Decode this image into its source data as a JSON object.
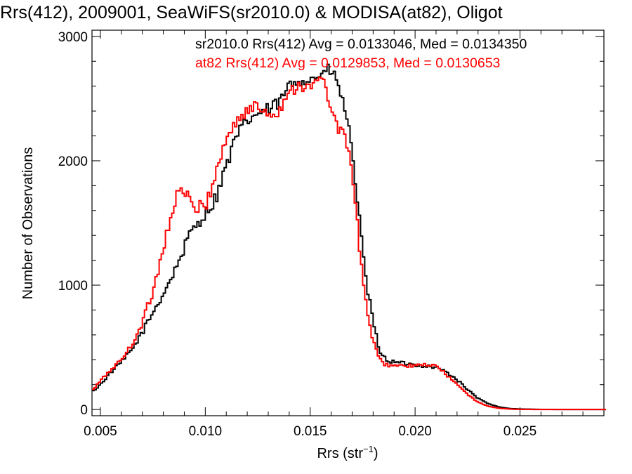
{
  "chart_data": {
    "type": "line",
    "title": "Rrs(412), 2009001, SeaWiFS(sr2010.0) & MODISA(at82), Oligot",
    "xlabel": {
      "base": "Rrs (str",
      "sup": "−1",
      "close": ")"
    },
    "ylabel": "Number of Observations",
    "xlim": [
      0.0046,
      0.029
    ],
    "ylim": [
      -50,
      3050
    ],
    "xticks": [
      0.005,
      0.01,
      0.015,
      0.02,
      0.025
    ],
    "xtick_labels": [
      "0.005",
      "0.010",
      "0.015",
      "0.020",
      "0.025"
    ],
    "yticks": [
      0,
      1000,
      2000,
      3000
    ],
    "ytick_labels": [
      "0",
      "1000",
      "2000",
      "3000"
    ],
    "grid": false,
    "legend_position": "top-right",
    "series": [
      {
        "name": "sr2010.0 Rrs(412) Avg = 0.0133046, Med = 0.0134350",
        "color": "#000000",
        "points": [
          [
            0.0046,
            140
          ],
          [
            0.005,
            200
          ],
          [
            0.0055,
            300
          ],
          [
            0.006,
            380
          ],
          [
            0.0065,
            480
          ],
          [
            0.007,
            620
          ],
          [
            0.0075,
            780
          ],
          [
            0.008,
            930
          ],
          [
            0.0085,
            1100
          ],
          [
            0.009,
            1300
          ],
          [
            0.0095,
            1480
          ],
          [
            0.01,
            1570
          ],
          [
            0.0105,
            1700
          ],
          [
            0.011,
            1960
          ],
          [
            0.0115,
            2200
          ],
          [
            0.012,
            2320
          ],
          [
            0.0125,
            2380
          ],
          [
            0.013,
            2410
          ],
          [
            0.0135,
            2460
          ],
          [
            0.014,
            2600
          ],
          [
            0.0145,
            2660
          ],
          [
            0.015,
            2650
          ],
          [
            0.0155,
            2700
          ],
          [
            0.016,
            2730
          ],
          [
            0.0163,
            2620
          ],
          [
            0.0166,
            2460
          ],
          [
            0.017,
            2100
          ],
          [
            0.0173,
            1600
          ],
          [
            0.0176,
            1100
          ],
          [
            0.018,
            700
          ],
          [
            0.0183,
            480
          ],
          [
            0.0186,
            400
          ],
          [
            0.019,
            380
          ],
          [
            0.0195,
            370
          ],
          [
            0.02,
            360
          ],
          [
            0.0205,
            350
          ],
          [
            0.021,
            340
          ],
          [
            0.0215,
            300
          ],
          [
            0.022,
            240
          ],
          [
            0.0225,
            160
          ],
          [
            0.023,
            90
          ],
          [
            0.0235,
            45
          ],
          [
            0.024,
            20
          ],
          [
            0.0245,
            8
          ],
          [
            0.025,
            4
          ],
          [
            0.026,
            1
          ],
          [
            0.027,
            0
          ],
          [
            0.029,
            0
          ]
        ]
      },
      {
        "name": "at82 Rrs(412) Avg = 0.0129853, Med = 0.0130653",
        "color": "#ff0000",
        "points": [
          [
            0.0046,
            150
          ],
          [
            0.005,
            230
          ],
          [
            0.0055,
            320
          ],
          [
            0.006,
            400
          ],
          [
            0.0065,
            520
          ],
          [
            0.007,
            700
          ],
          [
            0.0075,
            950
          ],
          [
            0.008,
            1300
          ],
          [
            0.0085,
            1650
          ],
          [
            0.0088,
            1780
          ],
          [
            0.009,
            1740
          ],
          [
            0.0095,
            1620
          ],
          [
            0.01,
            1630
          ],
          [
            0.0105,
            1900
          ],
          [
            0.011,
            2180
          ],
          [
            0.0115,
            2320
          ],
          [
            0.012,
            2400
          ],
          [
            0.0125,
            2440
          ],
          [
            0.013,
            2380
          ],
          [
            0.0135,
            2400
          ],
          [
            0.014,
            2560
          ],
          [
            0.0145,
            2620
          ],
          [
            0.015,
            2570
          ],
          [
            0.0155,
            2680
          ],
          [
            0.0158,
            2560
          ],
          [
            0.0162,
            2280
          ],
          [
            0.0166,
            2250
          ],
          [
            0.017,
            1900
          ],
          [
            0.0173,
            1400
          ],
          [
            0.0176,
            900
          ],
          [
            0.018,
            550
          ],
          [
            0.0183,
            400
          ],
          [
            0.0186,
            360
          ],
          [
            0.019,
            355
          ],
          [
            0.0195,
            350
          ],
          [
            0.02,
            350
          ],
          [
            0.0205,
            360
          ],
          [
            0.021,
            350
          ],
          [
            0.0215,
            280
          ],
          [
            0.022,
            200
          ],
          [
            0.0225,
            120
          ],
          [
            0.023,
            60
          ],
          [
            0.0235,
            25
          ],
          [
            0.024,
            10
          ],
          [
            0.0245,
            4
          ],
          [
            0.025,
            1
          ],
          [
            0.026,
            0
          ],
          [
            0.029,
            0
          ]
        ]
      }
    ]
  }
}
